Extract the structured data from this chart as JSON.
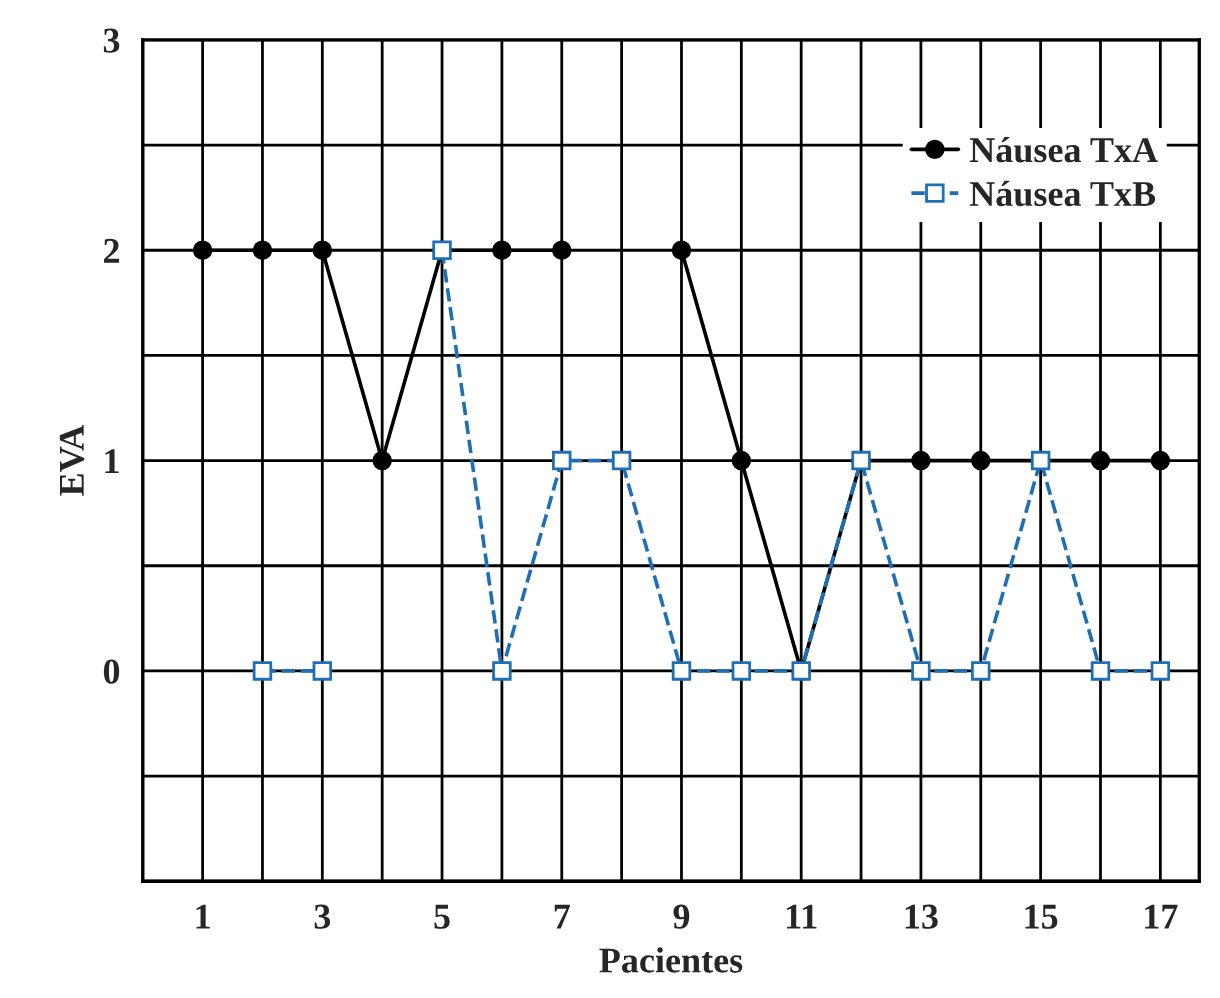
{
  "chart_data": {
    "type": "line",
    "xlabel": "Pacientes",
    "ylabel": "EVA",
    "x": [
      1,
      2,
      3,
      4,
      5,
      6,
      7,
      8,
      9,
      10,
      11,
      12,
      13,
      14,
      15,
      16,
      17
    ],
    "series": [
      {
        "name": "Náusea TxA",
        "color": "#000000",
        "marker": "circle",
        "line_style": "solid",
        "values": [
          2,
          2,
          2,
          1,
          2,
          2,
          2,
          null,
          2,
          1,
          0,
          1,
          1,
          1,
          1,
          1,
          1
        ]
      },
      {
        "name": "Náusea TxB",
        "color": "#1f6fb5",
        "marker": "square",
        "line_style": "dashed",
        "values": [
          null,
          0,
          0,
          null,
          2,
          0,
          1,
          1,
          0,
          0,
          0,
          1,
          0,
          0,
          1,
          0,
          0
        ]
      }
    ],
    "xlim": [
      0,
      17.65
    ],
    "ylim": [
      -1,
      3
    ],
    "xticks": [
      {
        "value": 0,
        "label": null
      },
      1,
      {
        "value": 2,
        "label": null
      },
      3,
      {
        "value": 4,
        "label": null
      },
      5,
      {
        "value": 6,
        "label": null
      },
      7,
      {
        "value": 8,
        "label": null
      },
      9,
      {
        "value": 10,
        "label": null
      },
      11,
      {
        "value": 12,
        "label": null
      },
      13,
      {
        "value": 14,
        "label": null
      },
      15,
      {
        "value": 16,
        "label": null
      },
      17
    ],
    "yticks": [
      {
        "value": -1,
        "label": null
      },
      {
        "value": -0.5,
        "label": null
      },
      0,
      {
        "value": 0.5,
        "label": null
      },
      1,
      {
        "value": 1.5,
        "label": null
      },
      2,
      {
        "value": 2.5,
        "label": null
      },
      3
    ],
    "grid": true,
    "legend": "top right"
  }
}
